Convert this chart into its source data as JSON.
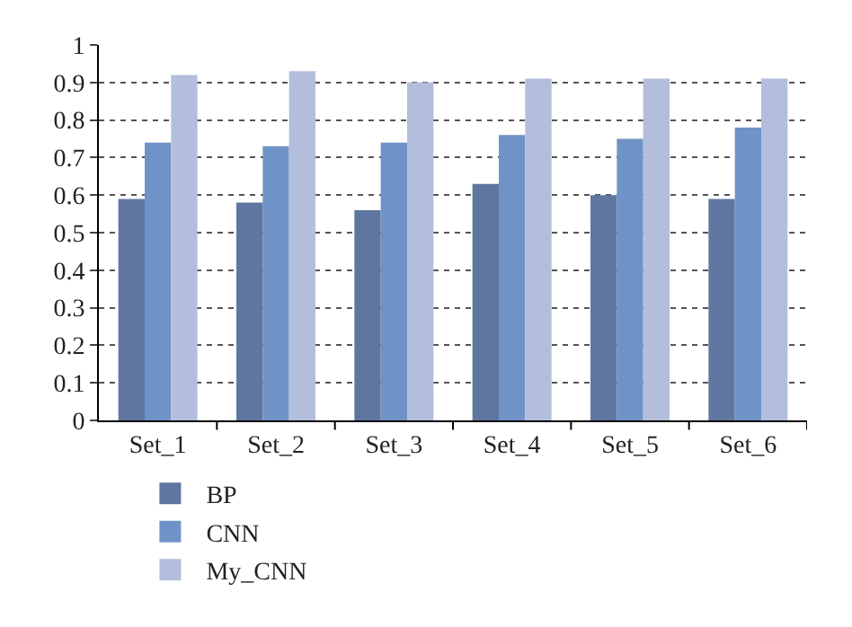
{
  "chart_data": {
    "type": "bar",
    "categories": [
      "Set_1",
      "Set_2",
      "Set_3",
      "Set_4",
      "Set_5",
      "Set_6"
    ],
    "series": [
      {
        "name": "BP",
        "color": "#5f76a0",
        "values": [
          0.59,
          0.58,
          0.56,
          0.63,
          0.6,
          0.59
        ]
      },
      {
        "name": "CNN",
        "color": "#6f93c6",
        "values": [
          0.74,
          0.73,
          0.74,
          0.76,
          0.75,
          0.78
        ]
      },
      {
        "name": "My_CNN",
        "color": "#b3bedd",
        "values": [
          0.92,
          0.93,
          0.9,
          0.91,
          0.91,
          0.91
        ]
      }
    ],
    "ylim": [
      0,
      1
    ],
    "yticks": [
      0,
      0.1,
      0.2,
      0.3,
      0.4,
      0.5,
      0.6,
      0.7,
      0.8,
      0.9,
      1
    ],
    "grid": "y",
    "legend": "bottom left"
  }
}
